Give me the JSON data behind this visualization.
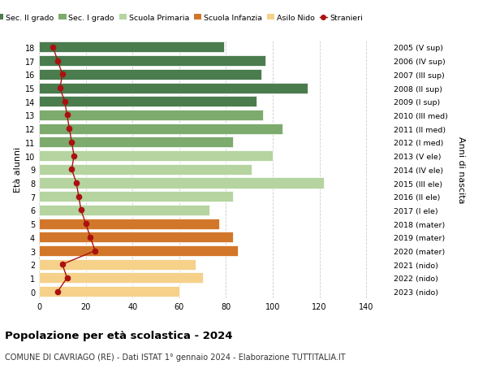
{
  "ages": [
    18,
    17,
    16,
    15,
    14,
    13,
    12,
    11,
    10,
    9,
    8,
    7,
    6,
    5,
    4,
    3,
    2,
    1,
    0
  ],
  "years": [
    "2005 (V sup)",
    "2006 (IV sup)",
    "2007 (III sup)",
    "2008 (II sup)",
    "2009 (I sup)",
    "2010 (III med)",
    "2011 (II med)",
    "2012 (I med)",
    "2013 (V ele)",
    "2014 (IV ele)",
    "2015 (III ele)",
    "2016 (II ele)",
    "2017 (I ele)",
    "2018 (mater)",
    "2019 (mater)",
    "2020 (mater)",
    "2021 (nido)",
    "2022 (nido)",
    "2023 (nido)"
  ],
  "values": [
    79,
    97,
    95,
    115,
    93,
    96,
    104,
    83,
    100,
    91,
    122,
    83,
    73,
    77,
    83,
    85,
    67,
    70,
    60
  ],
  "stranieri": [
    6,
    8,
    10,
    9,
    11,
    12,
    13,
    14,
    15,
    14,
    16,
    17,
    18,
    20,
    22,
    24,
    10,
    12,
    8
  ],
  "age_color_map": {
    "18": "#4a7c4e",
    "17": "#4a7c4e",
    "16": "#4a7c4e",
    "15": "#4a7c4e",
    "14": "#4a7c4e",
    "13": "#7dab6e",
    "12": "#7dab6e",
    "11": "#7dab6e",
    "10": "#b5d4a0",
    "9": "#b5d4a0",
    "8": "#b5d4a0",
    "7": "#b5d4a0",
    "6": "#b5d4a0",
    "5": "#d2772a",
    "4": "#d2772a",
    "3": "#d2772a",
    "2": "#f5d18a",
    "1": "#f5d18a",
    "0": "#f5d18a"
  },
  "stranieri_color": "#aa1111",
  "title": "Popolazione per età scolastica - 2024",
  "subtitle": "COMUNE DI CAVRIAGO (RE) - Dati ISTAT 1° gennaio 2024 - Elaborazione TUTTITALIA.IT",
  "ylabel_left": "Età alunni",
  "ylabel_right": "Anni di nascita",
  "xmax": 150,
  "xticks": [
    0,
    20,
    40,
    60,
    80,
    100,
    120,
    140
  ],
  "legend_labels": [
    "Sec. II grado",
    "Sec. I grado",
    "Scuola Primaria",
    "Scuola Infanzia",
    "Asilo Nido",
    "Stranieri"
  ],
  "legend_colors": [
    "#4a7c4e",
    "#7dab6e",
    "#b5d4a0",
    "#d2772a",
    "#f5d18a",
    "#aa1111"
  ],
  "bg_color": "#ffffff",
  "grid_color": "#cccccc"
}
